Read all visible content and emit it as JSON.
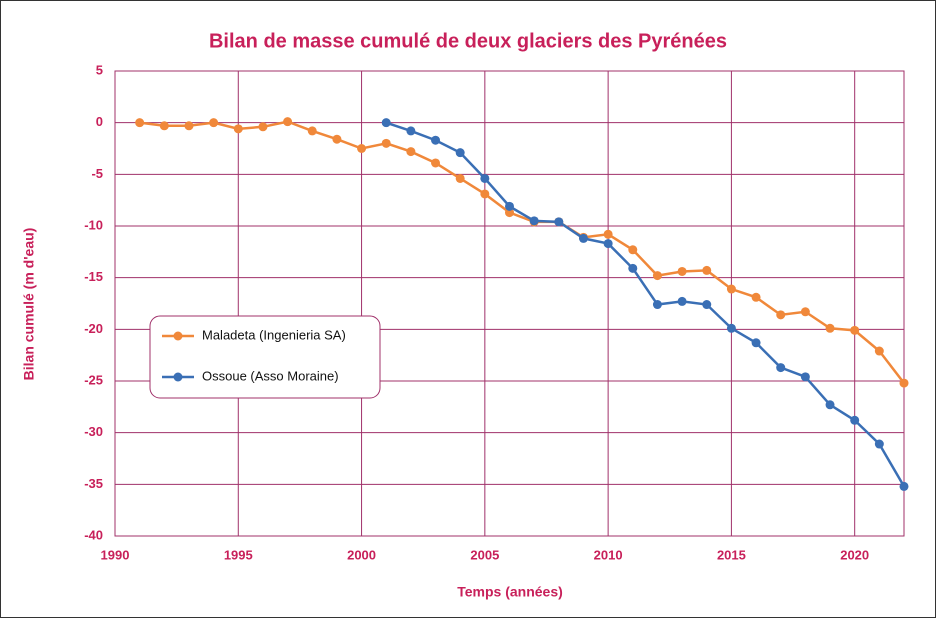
{
  "chart_data": {
    "type": "line",
    "title": "Bilan de masse cumulé de deux glaciers des Pyrénées",
    "xlabel": "Temps (années)",
    "ylabel": "Bilan cumulé (m d'eau)",
    "x": [
      1991,
      1992,
      1993,
      1994,
      1995,
      1996,
      1997,
      1998,
      1999,
      2000,
      2001,
      2002,
      2003,
      2004,
      2005,
      2006,
      2007,
      2008,
      2009,
      2010,
      2011,
      2012,
      2013,
      2014,
      2015,
      2016,
      2017,
      2018,
      2019,
      2020,
      2021,
      2022
    ],
    "series": [
      {
        "name": "Maladeta (Ingenieria SA)",
        "color": "#f0883a",
        "values": [
          0,
          -0.3,
          -0.3,
          0,
          -0.6,
          -0.4,
          0.1,
          -0.8,
          -1.6,
          -2.5,
          -2.0,
          -2.8,
          -3.9,
          -5.4,
          -6.9,
          -8.7,
          -9.6,
          -9.6,
          -11.1,
          -10.8,
          -12.3,
          -14.8,
          -14.4,
          -14.3,
          -16.1,
          -16.9,
          -18.6,
          -18.3,
          -19.9,
          -20.1,
          -22.1,
          -25.2
        ]
      },
      {
        "name": "Ossoue (Asso Moraine)",
        "color": "#3a6fb5",
        "values": [
          null,
          null,
          null,
          null,
          null,
          null,
          null,
          null,
          null,
          null,
          0,
          -0.8,
          -1.7,
          -2.9,
          -5.4,
          -8.1,
          -9.5,
          -9.6,
          -11.2,
          -11.7,
          -14.1,
          -17.6,
          -17.3,
          -17.6,
          -19.9,
          -21.3,
          -23.7,
          -24.6,
          -27.3,
          -28.8,
          -31.1,
          -35.2
        ]
      }
    ],
    "xlim": [
      1990,
      2022
    ],
    "xticks": [
      1990,
      1995,
      2000,
      2005,
      2010,
      2015,
      2020
    ],
    "ylim": [
      -40,
      5
    ],
    "yticks": [
      5,
      0,
      -5,
      -10,
      -15,
      -20,
      -25,
      -30,
      -35,
      -40
    ],
    "grid": true,
    "legend": "left"
  }
}
